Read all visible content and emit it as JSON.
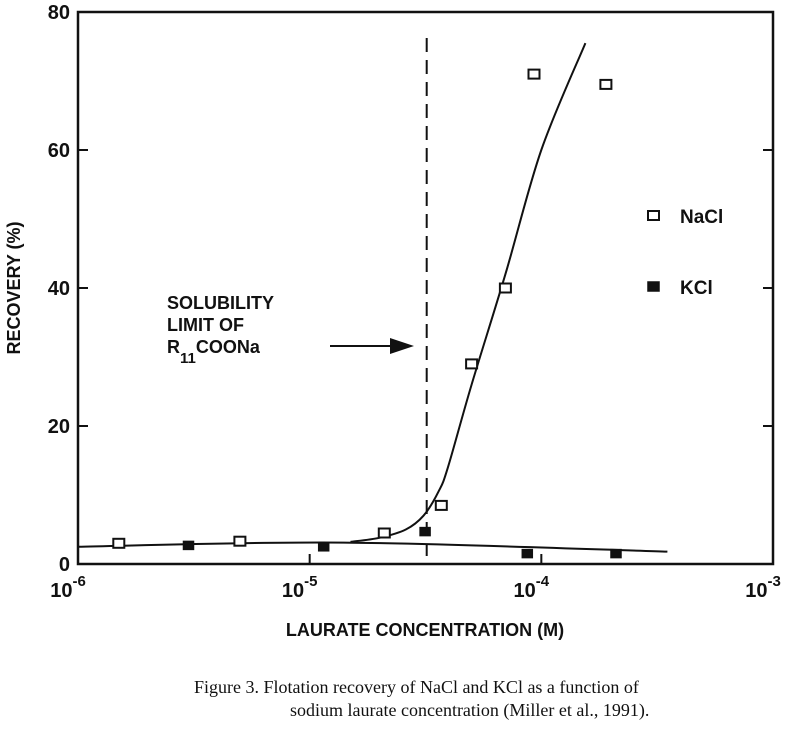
{
  "chart_data": {
    "type": "scatter",
    "xlabel": "LAURATE CONCENTRATION (M)",
    "ylabel": "RECOVERY (%)",
    "xscale": "log",
    "xlim": [
      1e-06,
      0.001
    ],
    "ylim": [
      0,
      80
    ],
    "grid": false,
    "legend_position": "right",
    "x_ticks": [
      {
        "base": "10",
        "exp": "-6",
        "value": 1e-06
      },
      {
        "base": "10",
        "exp": "-5",
        "value": 1e-05
      },
      {
        "base": "10",
        "exp": "-4",
        "value": 0.0001
      },
      {
        "base": "10",
        "exp": "-3",
        "value": 0.001
      }
    ],
    "y_ticks": [
      "0",
      "20",
      "40",
      "60",
      "80"
    ],
    "series": [
      {
        "name": "NaCl",
        "marker": "open-square",
        "x": [
          1.5e-06,
          5e-06,
          2.1e-05,
          3.7e-05,
          5e-05,
          7e-05,
          9.3e-05,
          0.00019
        ],
        "y": [
          3,
          3.3,
          4.5,
          8.5,
          29,
          40,
          71,
          69.5
        ],
        "fit_x": [
          1.5e-05,
          2e-05,
          2.6e-05,
          3.1e-05,
          3.6e-05,
          3.95e-05,
          5e-05,
          7e-05,
          0.0001,
          0.000155
        ],
        "fit_y": [
          3.2,
          3.8,
          5,
          7,
          10.5,
          14,
          26,
          42,
          60,
          75.5
        ]
      },
      {
        "name": "KCl",
        "marker": "filled-square",
        "x": [
          3e-06,
          1.15e-05,
          3.15e-05,
          8.7e-05,
          0.00021
        ],
        "y": [
          2.7,
          2.5,
          4.7,
          1.5,
          1.5
        ],
        "fit_x": [
          1e-06,
          1.4e-05,
          0.00035
        ],
        "fit_y": [
          2.5,
          3.1,
          1.8
        ]
      }
    ],
    "annotation": {
      "lines": [
        "SOLUBILITY",
        "LIMIT OF",
        "R"
      ],
      "subscript": "11",
      "suffix": "COONa",
      "vertical_line_x": 3.2e-05
    }
  },
  "caption": {
    "line1": "Figure 3.  Flotation recovery of NaCl and KCl as a function of",
    "line2": "sodium laurate concentration (Miller et al., 1991)."
  },
  "colors": {
    "ink": "#111111",
    "background": "#ffffff"
  }
}
